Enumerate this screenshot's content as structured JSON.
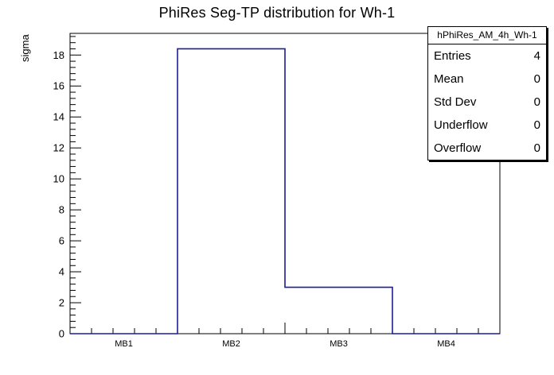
{
  "chart_data": {
    "type": "bar",
    "title": "PhiRes Seg-TP distribution for Wh-1",
    "xlabel": "",
    "ylabel": "sigma",
    "categories": [
      "MB1",
      "MB2",
      "MB3",
      "MB4"
    ],
    "values": [
      0,
      18.4,
      3,
      0
    ],
    "ylim": [
      0,
      19.4
    ],
    "y_major_step": 2,
    "y_minor_per_major": 5,
    "x_minor_per_bin": 5,
    "grid": "off",
    "legend": "none",
    "line_color": "#1c1c9c",
    "axis_color": "#000000",
    "stats_box": {
      "header": "hPhiRes_AM_4h_Wh-1",
      "rows": [
        {
          "label": "Entries",
          "value": "4"
        },
        {
          "label": "Mean",
          "value": "0"
        },
        {
          "label": "Std Dev",
          "value": "0"
        },
        {
          "label": "Underflow",
          "value": "0"
        },
        {
          "label": "Overflow",
          "value": "0"
        }
      ]
    }
  }
}
